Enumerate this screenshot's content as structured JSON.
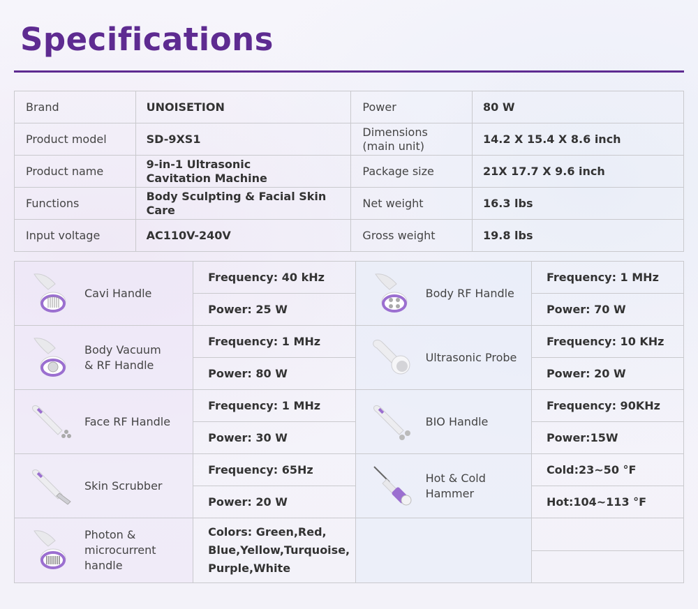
{
  "title": "Specifications",
  "specs": [
    {
      "label1": "Brand",
      "value1": "UNOISETION",
      "label2": "Power",
      "value2": "80 W"
    },
    {
      "label1": "Product model",
      "value1": "SD-9XS1",
      "label2": "Dimensions\n(main unit)",
      "value2": "14.2 X 15.4 X 8.6 inch"
    },
    {
      "label1": "Product name",
      "value1": "9-in-1 Ultrasonic\nCavitation Machine",
      "label2": "Package size",
      "value2": "21X 17.7 X 9.6 inch"
    },
    {
      "label1": "Functions",
      "value1": "Body Sculpting & Facial Skin Care",
      "label2": "Net weight",
      "value2": "16.3 lbs"
    },
    {
      "label1": "Input voltage",
      "value1": "AC110V-240V",
      "label2": "Gross weight",
      "value2": "19.8 lbs"
    }
  ],
  "handles": [
    {
      "left": {
        "name": "Cavi Handle",
        "icon": "cavi-handle-icon",
        "spec1": "Frequency: 40 kHz",
        "spec2": "Power: 25 W"
      },
      "right": {
        "name": "Body RF Handle",
        "icon": "body-rf-handle-icon",
        "spec1": "Frequency: 1 MHz",
        "spec2": "Power: 70 W"
      }
    },
    {
      "left": {
        "name": "Body Vacuum\n& RF Handle",
        "icon": "body-vacuum-rf-handle-icon",
        "spec1": "Frequency: 1 MHz",
        "spec2": "Power: 80 W"
      },
      "right": {
        "name": "Ultrasonic Probe",
        "icon": "ultrasonic-probe-icon",
        "spec1": "Frequency: 10 KHz",
        "spec2": "Power: 20 W"
      }
    },
    {
      "left": {
        "name": "Face RF Handle",
        "icon": "face-rf-handle-icon",
        "spec1": "Frequency: 1 MHz",
        "spec2": "Power: 30 W"
      },
      "right": {
        "name": "BIO Handle",
        "icon": "bio-handle-icon",
        "spec1": "Frequency: 90KHz",
        "spec2": "Power:15W"
      }
    },
    {
      "left": {
        "name": "Skin Scrubber",
        "icon": "skin-scrubber-icon",
        "spec1": "Frequency: 65Hz",
        "spec2": "Power: 20 W"
      },
      "right": {
        "name": "Hot & Cold Hammer",
        "icon": "hot-cold-hammer-icon",
        "spec1": "Cold:23~50 °F",
        "spec2": "Hot:104~113 °F"
      }
    }
  ],
  "photon": {
    "name": "Photon &\nmicrocurrent\nhandle",
    "icon": "photon-microcurrent-handle-icon",
    "colors": "Colors: Green,Red,\nBlue,Yellow,Turquoise,\nPurple,White"
  },
  "colors": {
    "accent": "#5e2b91",
    "device_purple": "#9b6fd0"
  }
}
